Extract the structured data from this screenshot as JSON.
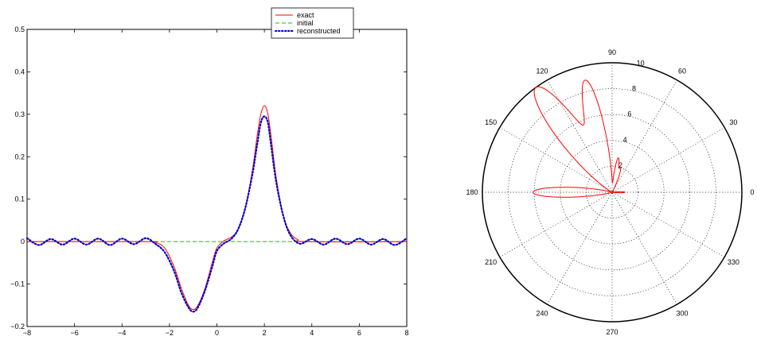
{
  "chart_data": [
    {
      "type": "line",
      "title": "",
      "xlabel": "",
      "ylabel": "",
      "xlim": [
        -8,
        8
      ],
      "ylim": [
        -0.2,
        0.5
      ],
      "x_ticks": [
        "−8",
        "−6",
        "−4",
        "−2",
        "0",
        "2",
        "4",
        "6",
        "8"
      ],
      "y_ticks": [
        "−0.2",
        "−0.1",
        "0",
        "0.1",
        "0.2",
        "0.3",
        "0.4",
        "0.5"
      ],
      "legend": {
        "position": "top-center-right",
        "entries": [
          "exact",
          "initial",
          "reconstructed"
        ]
      },
      "series": [
        {
          "name": "exact",
          "color": "#ff0000",
          "style": "solid",
          "x": [
            -8,
            -3,
            -2.6,
            -2.2,
            -1.8,
            -1.5,
            -1.2,
            -1,
            -0.8,
            -0.5,
            -0.2,
            0,
            0.3,
            0.6,
            0.9,
            1.2,
            1.5,
            1.7,
            1.85,
            2,
            2.15,
            2.3,
            2.5,
            2.8,
            3.1,
            3.4,
            3.8,
            8
          ],
          "y": [
            0,
            0,
            -0.002,
            -0.015,
            -0.06,
            -0.11,
            -0.15,
            -0.16,
            -0.15,
            -0.11,
            -0.05,
            -0.015,
            0.002,
            0.01,
            0.03,
            0.08,
            0.17,
            0.25,
            0.3,
            0.32,
            0.3,
            0.24,
            0.15,
            0.06,
            0.02,
            0.005,
            0,
            0
          ]
        },
        {
          "name": "initial",
          "color": "#00cc00",
          "style": "dashed",
          "x": [
            -8,
            8
          ],
          "y": [
            0,
            0
          ]
        },
        {
          "name": "reconstructed",
          "color": "#0000cc",
          "style": "dotted",
          "x": [
            -8,
            -7.5,
            -7,
            -6.5,
            -6,
            -5.5,
            -5,
            -4.5,
            -4,
            -3.5,
            -3,
            -2.6,
            -2.2,
            -1.8,
            -1.5,
            -1.2,
            -1,
            -0.8,
            -0.5,
            -0.2,
            0,
            0.3,
            0.6,
            0.9,
            1.2,
            1.5,
            1.7,
            1.85,
            2,
            2.15,
            2.3,
            2.5,
            2.8,
            3.1,
            3.5,
            4,
            4.5,
            5,
            5.5,
            6,
            6.5,
            7,
            7.5,
            8
          ],
          "y": [
            0.008,
            -0.008,
            0.006,
            -0.007,
            0.007,
            -0.007,
            0.007,
            -0.008,
            0.007,
            -0.006,
            0.008,
            -0.005,
            -0.025,
            -0.07,
            -0.12,
            -0.155,
            -0.165,
            -0.155,
            -0.115,
            -0.06,
            -0.022,
            -0.004,
            0.006,
            0.03,
            0.08,
            0.16,
            0.23,
            0.28,
            0.295,
            0.28,
            0.22,
            0.14,
            0.06,
            0.015,
            -0.005,
            0.006,
            -0.007,
            0.007,
            -0.006,
            0.007,
            -0.007,
            0.006,
            -0.008,
            0.008
          ]
        }
      ]
    },
    {
      "type": "polar",
      "title": "",
      "rlim": [
        0,
        10
      ],
      "r_ticks": [
        "2",
        "4",
        "6",
        "8",
        "10"
      ],
      "angle_ticks": [
        "0",
        "30",
        "60",
        "90",
        "120",
        "150",
        "180",
        "210",
        "240",
        "270",
        "300",
        "330"
      ],
      "grid": true,
      "series": [
        {
          "name": "",
          "color": "#ff0000",
          "style": "solid",
          "lobes": [
            {
              "center_deg": 180,
              "length": 6.1,
              "halfwidth_deg": 6
            },
            {
              "center_deg": 126,
              "length": 10.0,
              "halfwidth_deg": 9
            },
            {
              "center_deg": 103,
              "length": 8.5,
              "halfwidth_deg": 6
            },
            {
              "center_deg": 80,
              "length": 2.6,
              "halfwidth_deg": 4
            },
            {
              "center_deg": 70,
              "length": 1.8,
              "halfwidth_deg": 4
            },
            {
              "center_deg": 0,
              "length": 1.0,
              "halfwidth_deg": 4
            }
          ]
        }
      ]
    }
  ]
}
